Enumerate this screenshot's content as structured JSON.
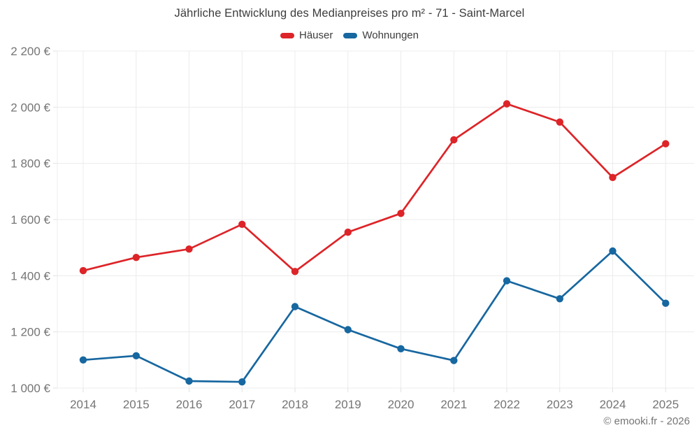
{
  "title": "Jährliche Entwicklung des Medianpreises pro m² - 71 - Saint-Marcel",
  "footer": "© emooki.fr - 2026",
  "chart_data": {
    "type": "line",
    "title": "Jährliche Entwicklung des Medianpreises pro m² - 71 - Saint-Marcel",
    "x": [
      "2014",
      "2015",
      "2016",
      "2017",
      "2018",
      "2019",
      "2020",
      "2021",
      "2022",
      "2023",
      "2024",
      "2025"
    ],
    "series": [
      {
        "key": "hauser",
        "name": "Häuser",
        "color": "#DD2428",
        "values": [
          1418,
          1465,
          1495,
          1583,
          1415,
          1555,
          1622,
          1884,
          2012,
          1947,
          1750,
          1870
        ]
      },
      {
        "key": "wohnungen",
        "name": "Wohnungen",
        "color": "#1767A0",
        "values": [
          1100,
          1115,
          1025,
          1022,
          1290,
          1208,
          1140,
          1098,
          1382,
          1318,
          1488,
          1302
        ]
      }
    ],
    "ylim": [
      1000,
      2200
    ],
    "ytick_step": 200,
    "ytick_labels": [
      "1 000 €",
      "1 200 €",
      "1 400 €",
      "1 600 €",
      "1 800 €",
      "2 000 €",
      "2 200 €"
    ],
    "currency_suffix": "€",
    "grid": true,
    "legend_position": "top"
  },
  "colors": {
    "grid": "#ececec",
    "tick": "#e2e2e2",
    "axis_text": "#757575",
    "title_text": "#3c3c3c",
    "footer_text": "#757575",
    "background": "#ffffff"
  }
}
